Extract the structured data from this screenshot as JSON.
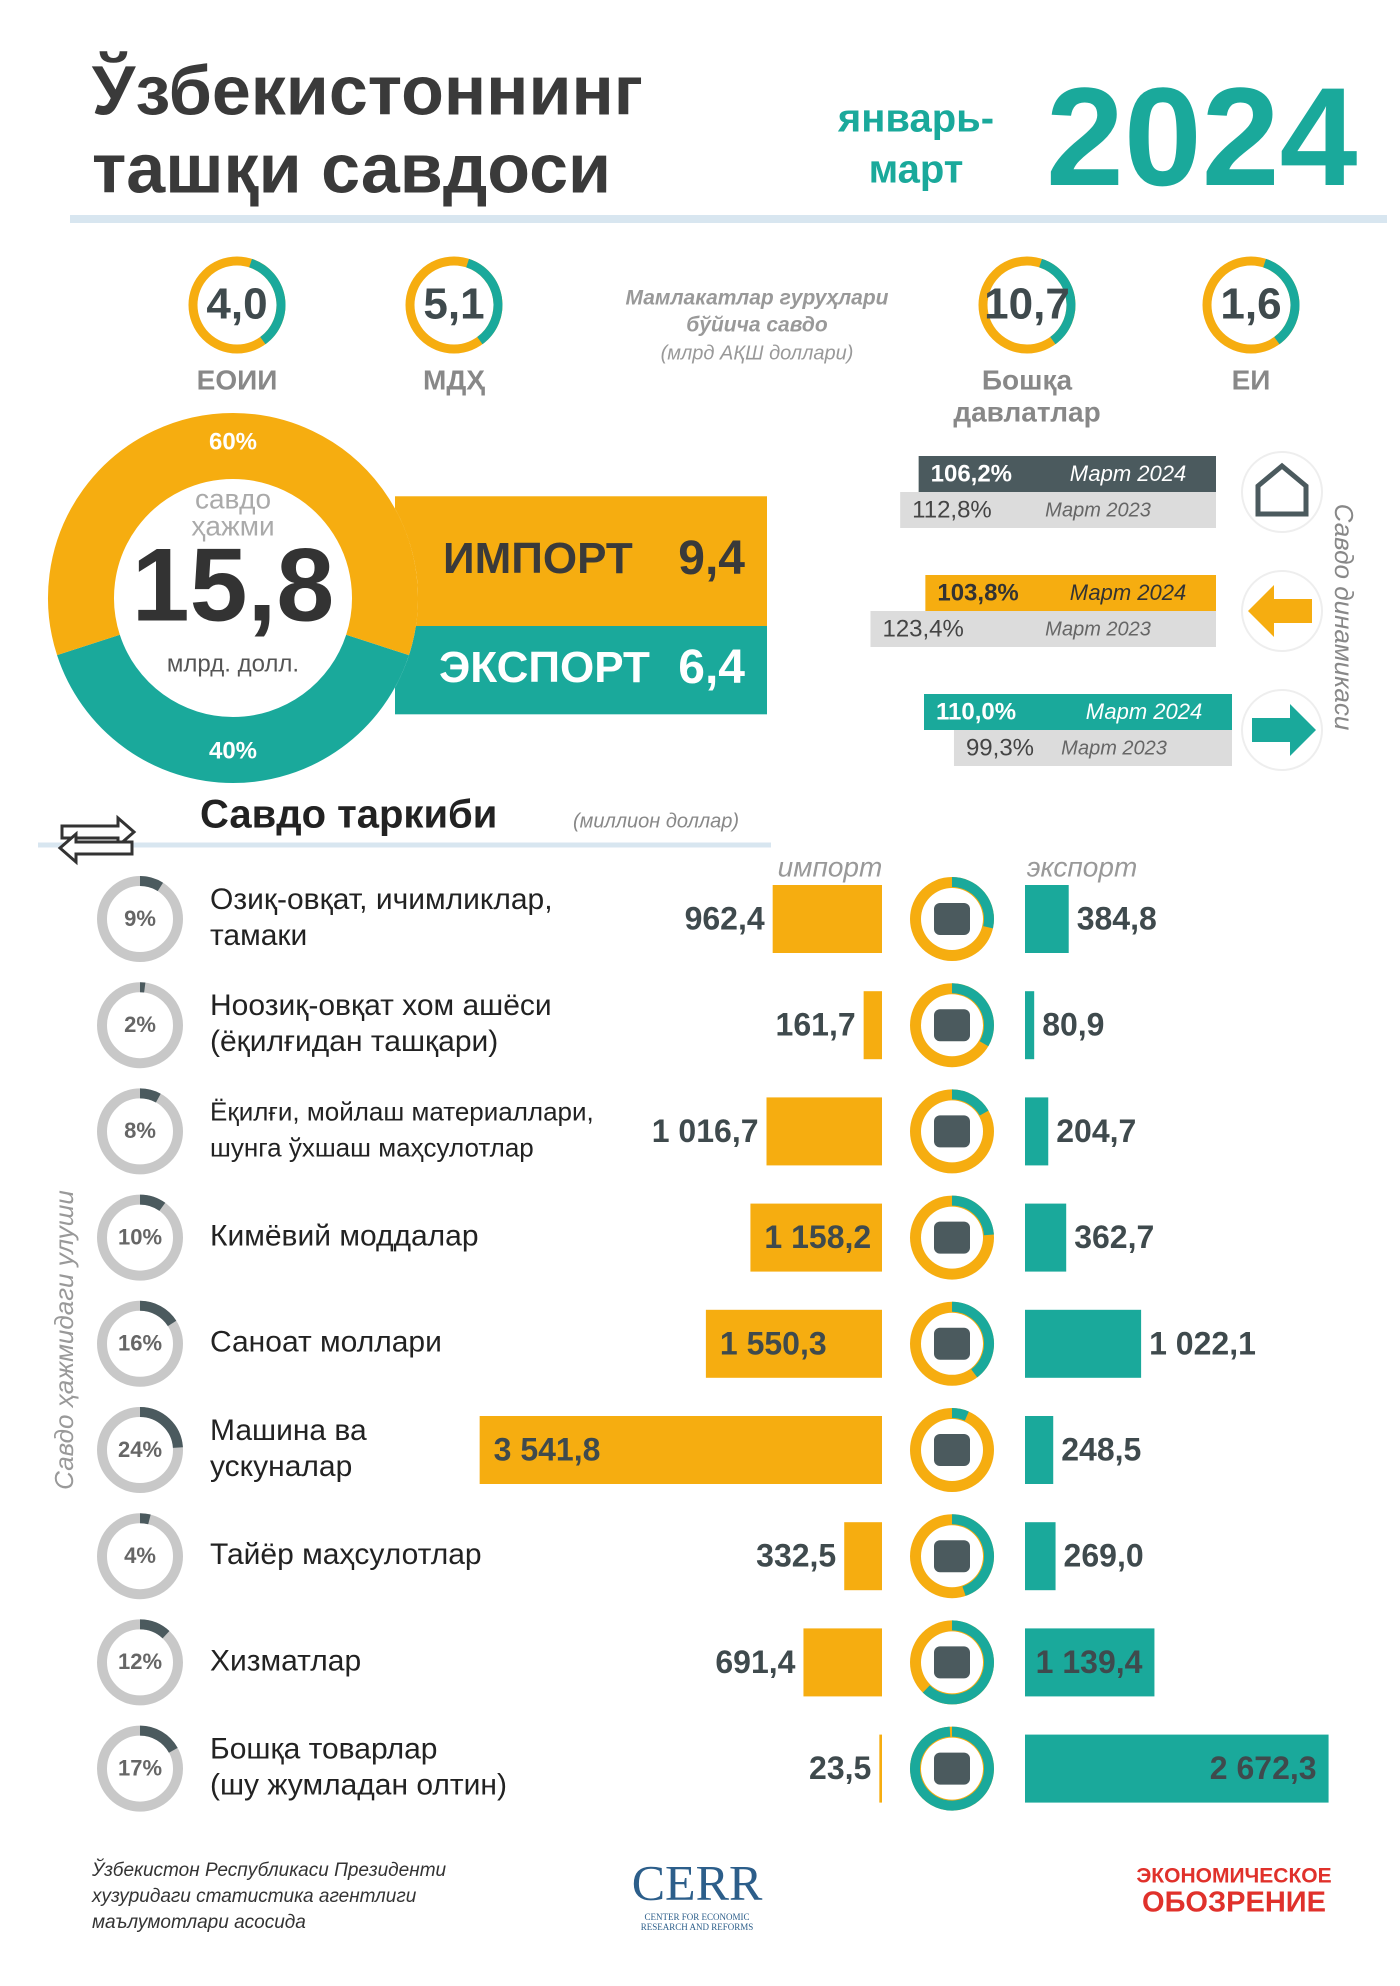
{
  "header": {
    "title": [
      "Ўзбекистоннинг",
      "ташқи савдоси"
    ],
    "period": [
      "январь-",
      "март"
    ],
    "year": "2024"
  },
  "groups": {
    "title": [
      "Мамлакатлар гуруҳлари",
      "бўйича савдо"
    ],
    "unit": "(млрд АҚШ доллари)",
    "items": [
      {
        "name": [
          "ЕОИИ"
        ],
        "value": "4,0"
      },
      {
        "name": [
          "МДҲ"
        ],
        "value": "5,1"
      },
      {
        "name": [
          "Бошқа",
          "давлатлар"
        ],
        "value": "10,7"
      },
      {
        "name": [
          "ЕИ"
        ],
        "value": "1,6"
      }
    ]
  },
  "summary": {
    "label": [
      "савдо",
      "ҳажми"
    ],
    "total": "15,8",
    "unit": "млрд. долл.",
    "import_name": "ИМПОРТ",
    "import": 9.4,
    "import_label": "9,4",
    "import_share": 60,
    "import_share_label": "60%",
    "export_name": "ЭКСПОРТ",
    "export": 6.4,
    "export_label": "6,4",
    "export_share": 40,
    "export_share_label": "40%"
  },
  "dynamics": {
    "title": "Савдо динамикаси",
    "rows": [
      {
        "current": 106.2,
        "current_label": "106,2%",
        "current_period": "Март 2024",
        "previous": 112.8,
        "previous_label": "112,8%",
        "previous_period": "Март 2023"
      },
      {
        "current": 103.8,
        "current_label": "103,8%",
        "current_period": "Март 2024",
        "previous": 123.4,
        "previous_label": "123,4%",
        "previous_period": "Март 2023"
      },
      {
        "current": 110.0,
        "current_label": "110,0%",
        "current_period": "Март 2024",
        "previous": 99.3,
        "previous_label": "99,3%",
        "previous_period": "Март 2023"
      }
    ]
  },
  "composition": {
    "title": "Савдо таркиби",
    "unit": "(миллион доллар)",
    "import_label": "импорт",
    "export_label": "экспорт",
    "share_label": "Савдо ҳажмидаги улуши",
    "rows": [
      {
        "name": [
          "Озиқ-овқат, ичимликлар,",
          "тамаки"
        ],
        "share": 9,
        "share_label": "9%",
        "import": 962.4,
        "import_label": "962,4",
        "export": 384.8,
        "export_label": "384,8"
      },
      {
        "name": [
          "Ноозиқ-овқат хом ашёси",
          "(ёқилғидан ташқари)"
        ],
        "share": 2,
        "share_label": "2%",
        "import": 161.7,
        "import_label": "161,7",
        "export": 80.9,
        "export_label": "80,9"
      },
      {
        "name": [
          "Ёқилғи, мойлаш материаллари,",
          "шунга ўхшаш маҳсулотлар"
        ],
        "share": 8,
        "share_label": "8%",
        "import": 1016.7,
        "import_label": "1 016,7",
        "export": 204.7,
        "export_label": "204,7"
      },
      {
        "name": [
          "Кимёвий моддалар"
        ],
        "share": 10,
        "share_label": "10%",
        "import": 1158.2,
        "import_label": "1 158,2",
        "export": 362.7,
        "export_label": "362,7"
      },
      {
        "name": [
          "Саноат моллари"
        ],
        "share": 16,
        "share_label": "16%",
        "import": 1550.3,
        "import_label": "1 550,3",
        "export": 1022.1,
        "export_label": "1 022,1"
      },
      {
        "name": [
          "Машина ва",
          "ускуналар"
        ],
        "share": 24,
        "share_label": "24%",
        "import": 3541.8,
        "import_label": "3 541,8",
        "export": 248.5,
        "export_label": "248,5"
      },
      {
        "name": [
          "Тайёр маҳсулотлар"
        ],
        "share": 4,
        "share_label": "4%",
        "import": 332.5,
        "import_label": "332,5",
        "export": 269.0,
        "export_label": "269,0"
      },
      {
        "name": [
          "Хизматлар"
        ],
        "share": 12,
        "share_label": "12%",
        "import": 691.4,
        "import_label": "691,4",
        "export": 1139.4,
        "export_label": "1 139,4"
      },
      {
        "name": [
          "Бошқа товарлар",
          "(шу жумладан олтин)"
        ],
        "share": 17,
        "share_label": "17%",
        "import": 23.5,
        "import_label": "23,5",
        "export": 2672.3,
        "export_label": "2 672,3"
      }
    ]
  },
  "footer": {
    "source": [
      "Ўзбекистон Республикаси Президенти",
      "хузуридаги статистика агентлиги",
      "маълумотлари асосида"
    ],
    "cerr": "CERR",
    "cerr_sub": [
      "CENTER FOR ECONOMIC",
      "RESEARCH AND REFORMS"
    ],
    "brand": [
      "ЭКОНОМИЧЕСКОЕ",
      "ОБОЗРЕНИЕ"
    ]
  }
}
